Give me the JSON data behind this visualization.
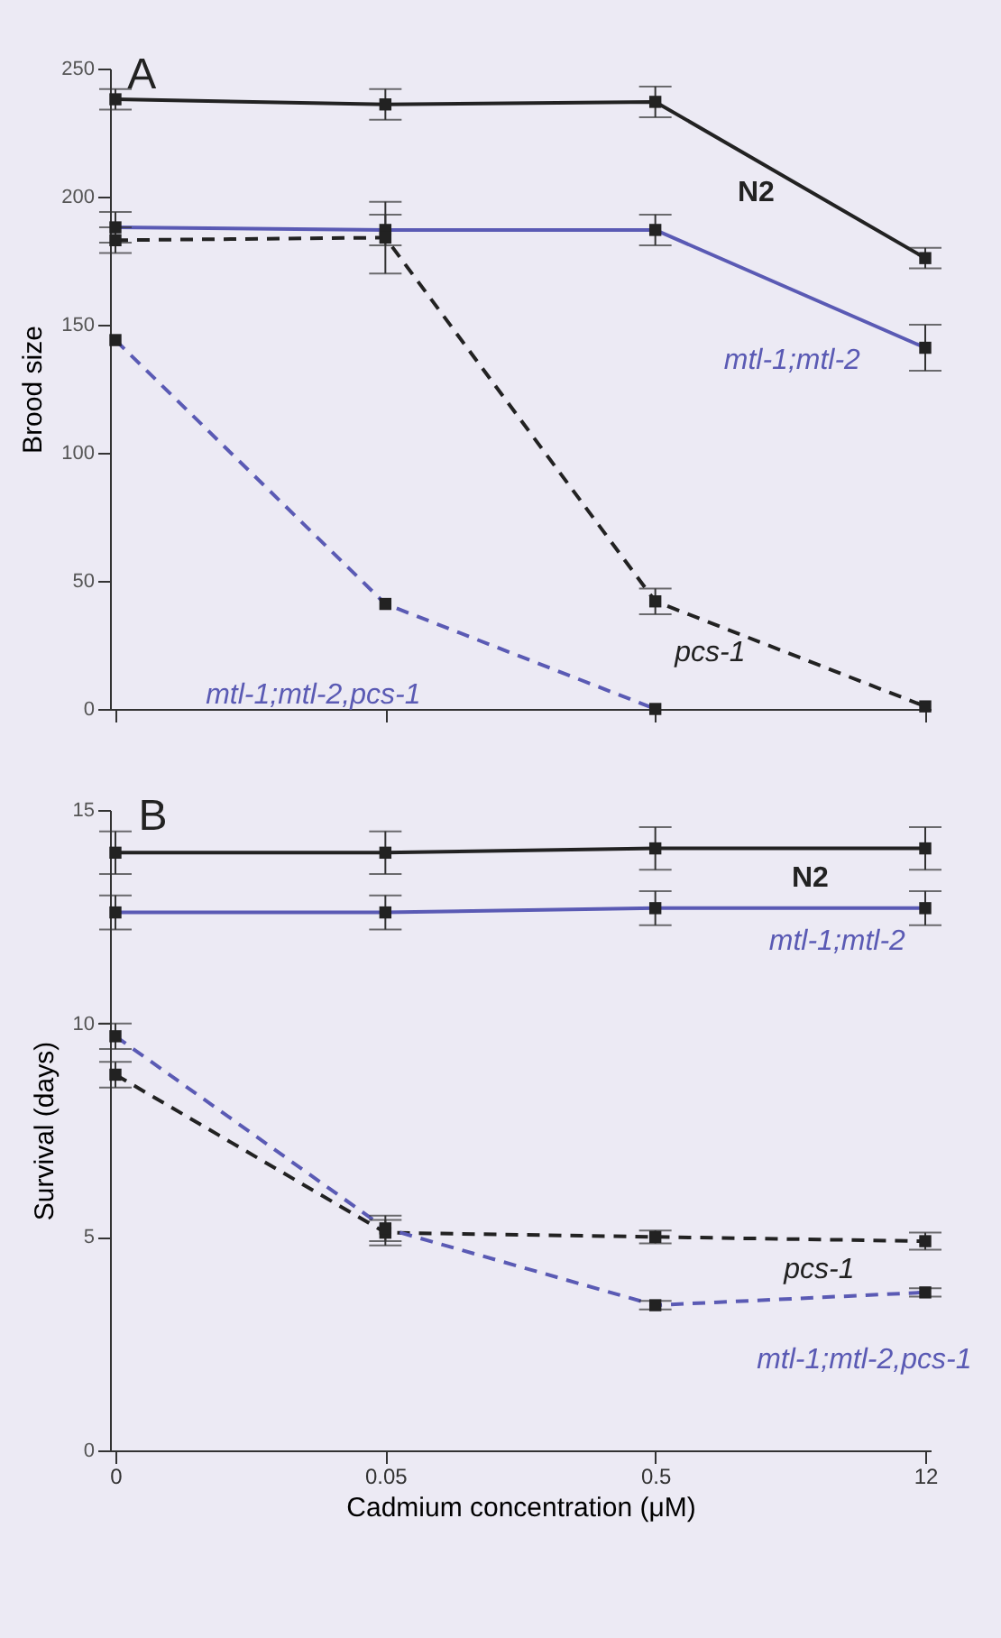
{
  "chart_data": [
    {
      "type": "line",
      "title": "A",
      "ylabel": "Brood size",
      "categories": [
        "0",
        "0.05",
        "0.5",
        "12"
      ],
      "ylim": [
        0,
        250
      ],
      "yticks": [
        0,
        50,
        100,
        150,
        200,
        250
      ],
      "tick_labels": "y",
      "grid": false,
      "legend": false,
      "marker": "square",
      "series": [
        {
          "name": "N2",
          "color": "#222222",
          "line_style": "solid",
          "values": [
            238,
            236,
            237,
            176
          ],
          "errors": [
            4,
            6,
            6,
            4
          ]
        },
        {
          "name": "mtl-1;mtl-2",
          "color": "#5a5ab4",
          "line_style": "solid",
          "values": [
            188,
            187,
            187,
            141
          ],
          "errors": [
            6,
            6,
            6,
            9
          ]
        },
        {
          "name": "pcs-1",
          "color": "#222222",
          "line_style": "dashed",
          "values": [
            183,
            184,
            42,
            1
          ],
          "errors": [
            5,
            14,
            5,
            null
          ]
        },
        {
          "name": "mtl-1;mtl-2,pcs-1",
          "color": "#5a5ab4",
          "line_style": "dashed",
          "values": [
            144,
            41,
            0,
            null
          ],
          "errors": [
            null,
            null,
            null,
            null
          ]
        }
      ]
    },
    {
      "type": "line",
      "title": "B",
      "xlabel": "Cadmium concentration (μM)",
      "ylabel": "Survival (days)",
      "categories": [
        "0",
        "0.05",
        "0.5",
        "12"
      ],
      "ylim": [
        0,
        15
      ],
      "yticks": [
        0,
        5,
        10,
        15
      ],
      "grid": false,
      "legend": false,
      "marker": "square",
      "series": [
        {
          "name": "N2",
          "color": "#222222",
          "line_style": "solid",
          "values": [
            14,
            14,
            14.1,
            14.1
          ],
          "errors": [
            0.5,
            0.5,
            0.5,
            0.5
          ]
        },
        {
          "name": "mtl-1;mtl-2",
          "color": "#5a5ab4",
          "line_style": "solid",
          "values": [
            12.6,
            12.6,
            12.7,
            12.7
          ],
          "errors": [
            0.4,
            0.4,
            0.4,
            0.4
          ]
        },
        {
          "name": "pcs-1",
          "color": "#222222",
          "line_style": "dashed",
          "values": [
            8.8,
            5.1,
            5.0,
            4.9
          ],
          "errors": [
            0.3,
            0.3,
            0.15,
            0.2
          ]
        },
        {
          "name": "mtl-1;mtl-2,pcs-1",
          "color": "#5a5ab4",
          "line_style": "dashed",
          "values": [
            9.7,
            5.2,
            3.4,
            3.7
          ],
          "errors": [
            0.3,
            0.3,
            0.1,
            0.1
          ]
        }
      ]
    }
  ]
}
